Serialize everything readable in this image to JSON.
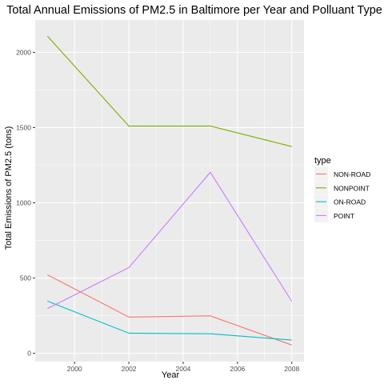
{
  "chart_data": {
    "type": "line",
    "title": "Total Annual Emissions of PM2.5 in Baltimore per Year and Polluant Type",
    "xlabel": "Year",
    "ylabel": "Total Emissions of PM2.5 (tons)",
    "x": [
      1999,
      2002,
      2005,
      2008
    ],
    "xlim": [
      1998.55,
      2008.45
    ],
    "ylim": [
      -55,
      2215
    ],
    "x_ticks": [
      2000,
      2002,
      2004,
      2006,
      2008
    ],
    "x_tick_labels": [
      "2000",
      "2002",
      "2004",
      "2006",
      "2008"
    ],
    "y_ticks": [
      0,
      500,
      1000,
      1500,
      2000
    ],
    "y_tick_labels": [
      "0",
      "500",
      "1000",
      "1500",
      "2000"
    ],
    "grid": true,
    "background": "#ebebeb",
    "legend": {
      "title": "type",
      "placement": "right"
    },
    "series": [
      {
        "name": "NON-ROAD",
        "color": "#f8766d",
        "values": [
          522,
          241,
          249,
          55
        ]
      },
      {
        "name": "NONPOINT",
        "color": "#7cae00",
        "values": [
          2108,
          1510,
          1510,
          1374
        ]
      },
      {
        "name": "ON-ROAD",
        "color": "#00bfc4",
        "values": [
          347,
          134,
          130,
          88
        ]
      },
      {
        "name": "POINT",
        "color": "#c77cff",
        "values": [
          297,
          570,
          1203,
          345
        ]
      }
    ]
  }
}
